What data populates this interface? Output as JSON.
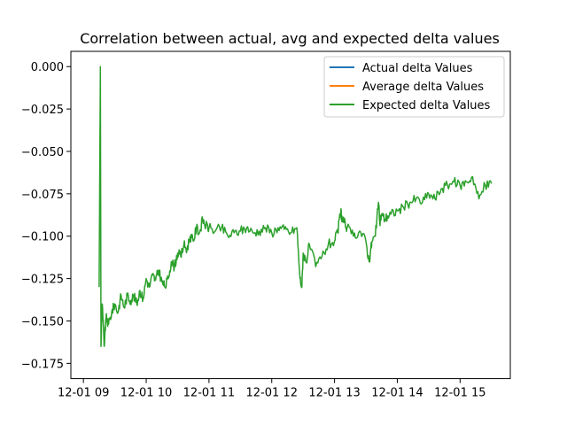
{
  "chart_data": {
    "type": "line",
    "title": "Correlation between actual, avg and expected delta values",
    "xlabel": "",
    "ylabel": "",
    "xlim_hours": [
      8.8,
      15.8
    ],
    "ylim": [
      -0.184,
      0.009
    ],
    "x_ticks": [
      {
        "value": 9,
        "label": "12-01 09"
      },
      {
        "value": 10,
        "label": "12-01 10"
      },
      {
        "value": 11,
        "label": "12-01 11"
      },
      {
        "value": 12,
        "label": "12-01 12"
      },
      {
        "value": 13,
        "label": "12-01 13"
      },
      {
        "value": 14,
        "label": "12-01 14"
      },
      {
        "value": 15,
        "label": "12-01 15"
      }
    ],
    "y_ticks": [
      {
        "value": 0.0,
        "label": "0.000"
      },
      {
        "value": -0.025,
        "label": "−0.025"
      },
      {
        "value": -0.05,
        "label": "−0.050"
      },
      {
        "value": -0.075,
        "label": "−0.075"
      },
      {
        "value": -0.1,
        "label": "−0.100"
      },
      {
        "value": -0.125,
        "label": "−0.125"
      },
      {
        "value": -0.15,
        "label": "−0.150"
      },
      {
        "value": -0.175,
        "label": "−0.175"
      }
    ],
    "grid": false,
    "legend_position": "top-right",
    "series": [
      {
        "name": "Actual delta Values",
        "color": "#1f77b4",
        "hidden_behind_expected": true
      },
      {
        "name": "Average delta Values",
        "color": "#ff7f0e",
        "hidden_behind_expected": true
      },
      {
        "name": "Expected delta Values",
        "color": "#2ca02c",
        "x": [
          9.25,
          9.27,
          9.28,
          9.3,
          9.33,
          9.36,
          9.4,
          9.45,
          9.5,
          9.55,
          9.6,
          9.65,
          9.7,
          9.75,
          9.8,
          9.85,
          9.9,
          9.95,
          10.0,
          10.05,
          10.1,
          10.15,
          10.2,
          10.25,
          10.3,
          10.35,
          10.4,
          10.45,
          10.5,
          10.55,
          10.6,
          10.65,
          10.7,
          10.75,
          10.8,
          10.85,
          10.9,
          10.95,
          11.0,
          11.1,
          11.2,
          11.3,
          11.4,
          11.5,
          11.6,
          11.7,
          11.8,
          11.9,
          12.0,
          12.1,
          12.2,
          12.3,
          12.4,
          12.45,
          12.48,
          12.5,
          12.55,
          12.6,
          12.7,
          12.8,
          12.9,
          13.0,
          13.05,
          13.1,
          13.12,
          13.15,
          13.2,
          13.3,
          13.4,
          13.5,
          13.55,
          13.58,
          13.6,
          13.65,
          13.7,
          13.72,
          13.75,
          13.8,
          13.85,
          13.9,
          14.0,
          14.1,
          14.2,
          14.3,
          14.4,
          14.5,
          14.6,
          14.7,
          14.8,
          14.9,
          15.0,
          15.1,
          15.2,
          15.3,
          15.4,
          15.5
        ],
        "values": [
          -0.13,
          0.0,
          -0.165,
          -0.14,
          -0.165,
          -0.148,
          -0.152,
          -0.145,
          -0.14,
          -0.145,
          -0.135,
          -0.142,
          -0.135,
          -0.138,
          -0.135,
          -0.14,
          -0.132,
          -0.137,
          -0.125,
          -0.13,
          -0.123,
          -0.126,
          -0.12,
          -0.127,
          -0.13,
          -0.125,
          -0.115,
          -0.118,
          -0.11,
          -0.112,
          -0.105,
          -0.108,
          -0.1,
          -0.103,
          -0.095,
          -0.098,
          -0.09,
          -0.094,
          -0.095,
          -0.097,
          -0.095,
          -0.1,
          -0.098,
          -0.097,
          -0.095,
          -0.098,
          -0.097,
          -0.095,
          -0.098,
          -0.095,
          -0.096,
          -0.098,
          -0.095,
          -0.125,
          -0.13,
          -0.11,
          -0.115,
          -0.105,
          -0.118,
          -0.112,
          -0.105,
          -0.103,
          -0.098,
          -0.085,
          -0.09,
          -0.092,
          -0.095,
          -0.1,
          -0.097,
          -0.103,
          -0.115,
          -0.107,
          -0.103,
          -0.1,
          -0.08,
          -0.092,
          -0.087,
          -0.09,
          -0.088,
          -0.087,
          -0.085,
          -0.083,
          -0.08,
          -0.078,
          -0.08,
          -0.075,
          -0.078,
          -0.072,
          -0.07,
          -0.068,
          -0.07,
          -0.068,
          -0.065,
          -0.078,
          -0.07,
          -0.069
        ]
      }
    ]
  }
}
